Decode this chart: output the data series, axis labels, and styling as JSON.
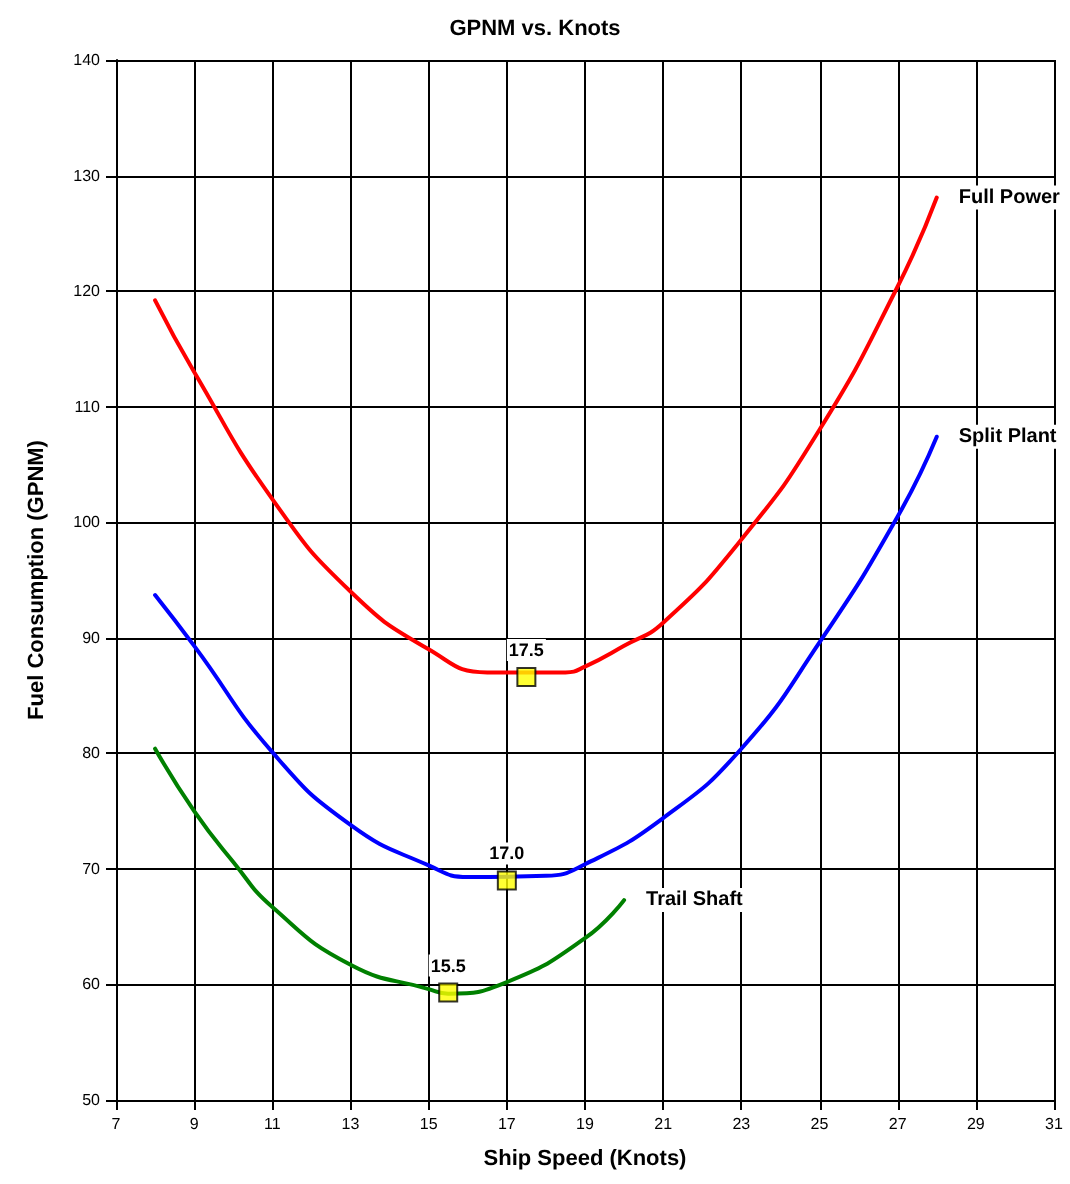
{
  "chart_data": {
    "type": "line",
    "title": "GPNM vs. Knots",
    "xlabel": "Ship Speed (Knots)",
    "ylabel": "Fuel Consumption (GPNM)",
    "xlim": [
      7,
      31
    ],
    "xticks": [
      7,
      9,
      11,
      13,
      15,
      17,
      19,
      21,
      23,
      25,
      27,
      29,
      31
    ],
    "ylim": [
      50,
      140
    ],
    "yticks": [
      50,
      60,
      70,
      80,
      90,
      100,
      110,
      120,
      130,
      140
    ],
    "grid": true,
    "legend": false,
    "marker": "none",
    "line_style": "solid",
    "series": [
      {
        "name": "Full Power",
        "color": "#ff0000",
        "x": [
          8,
          9,
          11,
          13,
          15,
          16.5,
          18.5,
          19,
          20,
          21,
          23,
          25,
          27,
          28
        ],
        "values": [
          119.2,
          113,
          102,
          94,
          89,
          87,
          87,
          87.5,
          89.3,
          91.3,
          98.5,
          108,
          120.4,
          128.1
        ]
      },
      {
        "name": "Split Plant",
        "color": "#0000ff",
        "x": [
          8,
          9,
          11,
          13,
          15,
          16,
          18,
          19,
          21,
          23,
          25,
          27,
          28
        ],
        "values": [
          93.7,
          89.3,
          80.1,
          73.8,
          70.3,
          69.3,
          69.4,
          70.4,
          74.4,
          80.4,
          89.6,
          100.5,
          107.4
        ]
      },
      {
        "name": "Trail Shaft",
        "color": "#008000",
        "x": [
          8,
          9,
          10,
          11,
          13,
          15,
          15.5,
          17,
          19,
          20
        ],
        "values": [
          80.4,
          75,
          70.6,
          66.7,
          61.7,
          59.6,
          59.2,
          60.2,
          64,
          67.3
        ]
      },
      {
        "type": "scatter",
        "marker": "square",
        "color": "#ffff00",
        "x": [
          17.5,
          17.0,
          15.5
        ],
        "values": [
          86.6,
          69,
          59.3
        ]
      }
    ],
    "annotations": [
      {
        "text": "17.5",
        "x": 17.5,
        "y": 86.6
      },
      {
        "text": "17.0",
        "x": 17.0,
        "y": 69
      },
      {
        "text": "15.5",
        "x": 15.5,
        "y": 59.3
      }
    ]
  }
}
